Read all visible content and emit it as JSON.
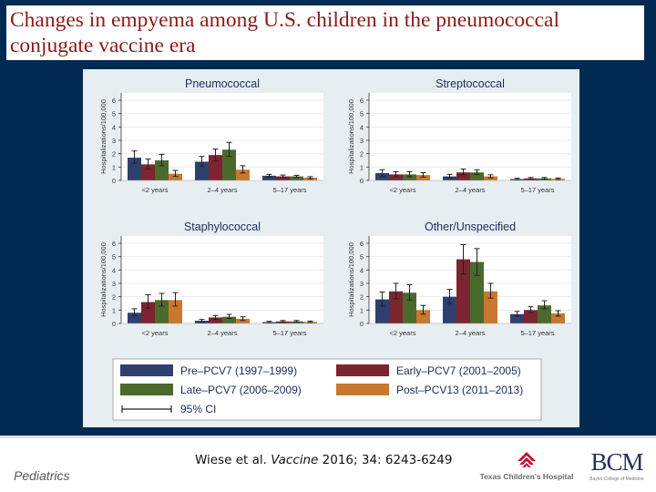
{
  "slide": {
    "title_lines": [
      "Changes in empyema among U.S. children in the pneumococcal",
      "conjugate vaccine era"
    ]
  },
  "footer": {
    "left_label": "Pediatrics",
    "citation": {
      "authors": "Wiese et al.",
      "journal": "Vaccine",
      "details": "2016; 34: 6243-6249"
    },
    "logos": [
      "Texas Children's Hospital",
      "BCM",
      "Baylor College of Medicine"
    ]
  },
  "colors": {
    "background": "#002a52",
    "title": "#8b1a1a",
    "panel": "#e7eef2",
    "series": [
      "#2f3f6e",
      "#7a2530",
      "#4a6a2b",
      "#c8772e"
    ]
  },
  "chart_data": {
    "type": "bar",
    "ylabel": "Hospitalizations/100,000",
    "ylim": [
      0,
      6
    ],
    "yticks": [
      0,
      1,
      2,
      3,
      4,
      5,
      6
    ],
    "categories": [
      "<2 years",
      "2–4 years",
      "5–17 years"
    ],
    "series_names": [
      "Pre–PCV7 (1997–1999)",
      "Early–PCV7 (2001–2005)",
      "Late–PCV7 (2006–2009)",
      "Post–PCV13 (2011–2013)"
    ],
    "legend": {
      "placement": "bottom",
      "entries": [
        "Pre–PCV7 (1997–1999)",
        "Early–PCV7 (2001–2005)",
        "Late–PCV7 (2006–2009)",
        "Post–PCV13 (2011–2013)"
      ],
      "ci_label": "95% CI"
    },
    "grid": true,
    "panels": [
      {
        "title": "Pneumococcal",
        "values": [
          [
            1.7,
            1.2,
            1.5,
            0.5
          ],
          [
            1.4,
            1.9,
            2.3,
            0.8
          ],
          [
            0.35,
            0.3,
            0.3,
            0.2
          ]
        ],
        "ci": [
          [
            [
              1.3,
              2.2
            ],
            [
              0.85,
              1.6
            ],
            [
              1.1,
              1.95
            ],
            [
              0.3,
              0.75
            ]
          ],
          [
            [
              1.05,
              1.8
            ],
            [
              1.45,
              2.35
            ],
            [
              1.8,
              2.85
            ],
            [
              0.55,
              1.1
            ]
          ],
          [
            [
              0.25,
              0.45
            ],
            [
              0.22,
              0.4
            ],
            [
              0.22,
              0.38
            ],
            [
              0.12,
              0.28
            ]
          ]
        ]
      },
      {
        "title": "Streptococcal",
        "values": [
          [
            0.55,
            0.45,
            0.45,
            0.4
          ],
          [
            0.3,
            0.6,
            0.6,
            0.3
          ],
          [
            0.1,
            0.15,
            0.15,
            0.12
          ]
        ],
        "ci": [
          [
            [
              0.3,
              0.8
            ],
            [
              0.3,
              0.65
            ],
            [
              0.28,
              0.65
            ],
            [
              0.25,
              0.58
            ]
          ],
          [
            [
              0.18,
              0.45
            ],
            [
              0.42,
              0.85
            ],
            [
              0.45,
              0.8
            ],
            [
              0.2,
              0.42
            ]
          ],
          [
            [
              0.05,
              0.16
            ],
            [
              0.1,
              0.22
            ],
            [
              0.1,
              0.22
            ],
            [
              0.07,
              0.18
            ]
          ]
        ]
      },
      {
        "title": "Staphylococcal",
        "values": [
          [
            0.8,
            1.6,
            1.75,
            1.75
          ],
          [
            0.2,
            0.45,
            0.5,
            0.35
          ],
          [
            0.1,
            0.15,
            0.15,
            0.12
          ]
        ],
        "ci": [
          [
            [
              0.55,
              1.1
            ],
            [
              1.15,
              2.15
            ],
            [
              1.3,
              2.25
            ],
            [
              1.3,
              2.3
            ]
          ],
          [
            [
              0.1,
              0.3
            ],
            [
              0.3,
              0.6
            ],
            [
              0.38,
              0.68
            ],
            [
              0.22,
              0.5
            ]
          ],
          [
            [
              0.05,
              0.16
            ],
            [
              0.1,
              0.22
            ],
            [
              0.1,
              0.22
            ],
            [
              0.07,
              0.18
            ]
          ]
        ]
      },
      {
        "title": "Other/Unspecified",
        "values": [
          [
            1.8,
            2.4,
            2.3,
            1.0
          ],
          [
            2.0,
            4.8,
            4.6,
            2.4
          ],
          [
            0.7,
            1.0,
            1.35,
            0.75
          ]
        ],
        "ci": [
          [
            [
              1.3,
              2.35
            ],
            [
              1.85,
              3.0
            ],
            [
              1.75,
              2.9
            ],
            [
              0.7,
              1.35
            ]
          ],
          [
            [
              1.5,
              2.55
            ],
            [
              3.7,
              5.9
            ],
            [
              3.6,
              5.6
            ],
            [
              1.9,
              3.0
            ]
          ],
          [
            [
              0.55,
              0.9
            ],
            [
              0.8,
              1.25
            ],
            [
              1.1,
              1.7
            ],
            [
              0.55,
              0.95
            ]
          ]
        ]
      }
    ]
  }
}
